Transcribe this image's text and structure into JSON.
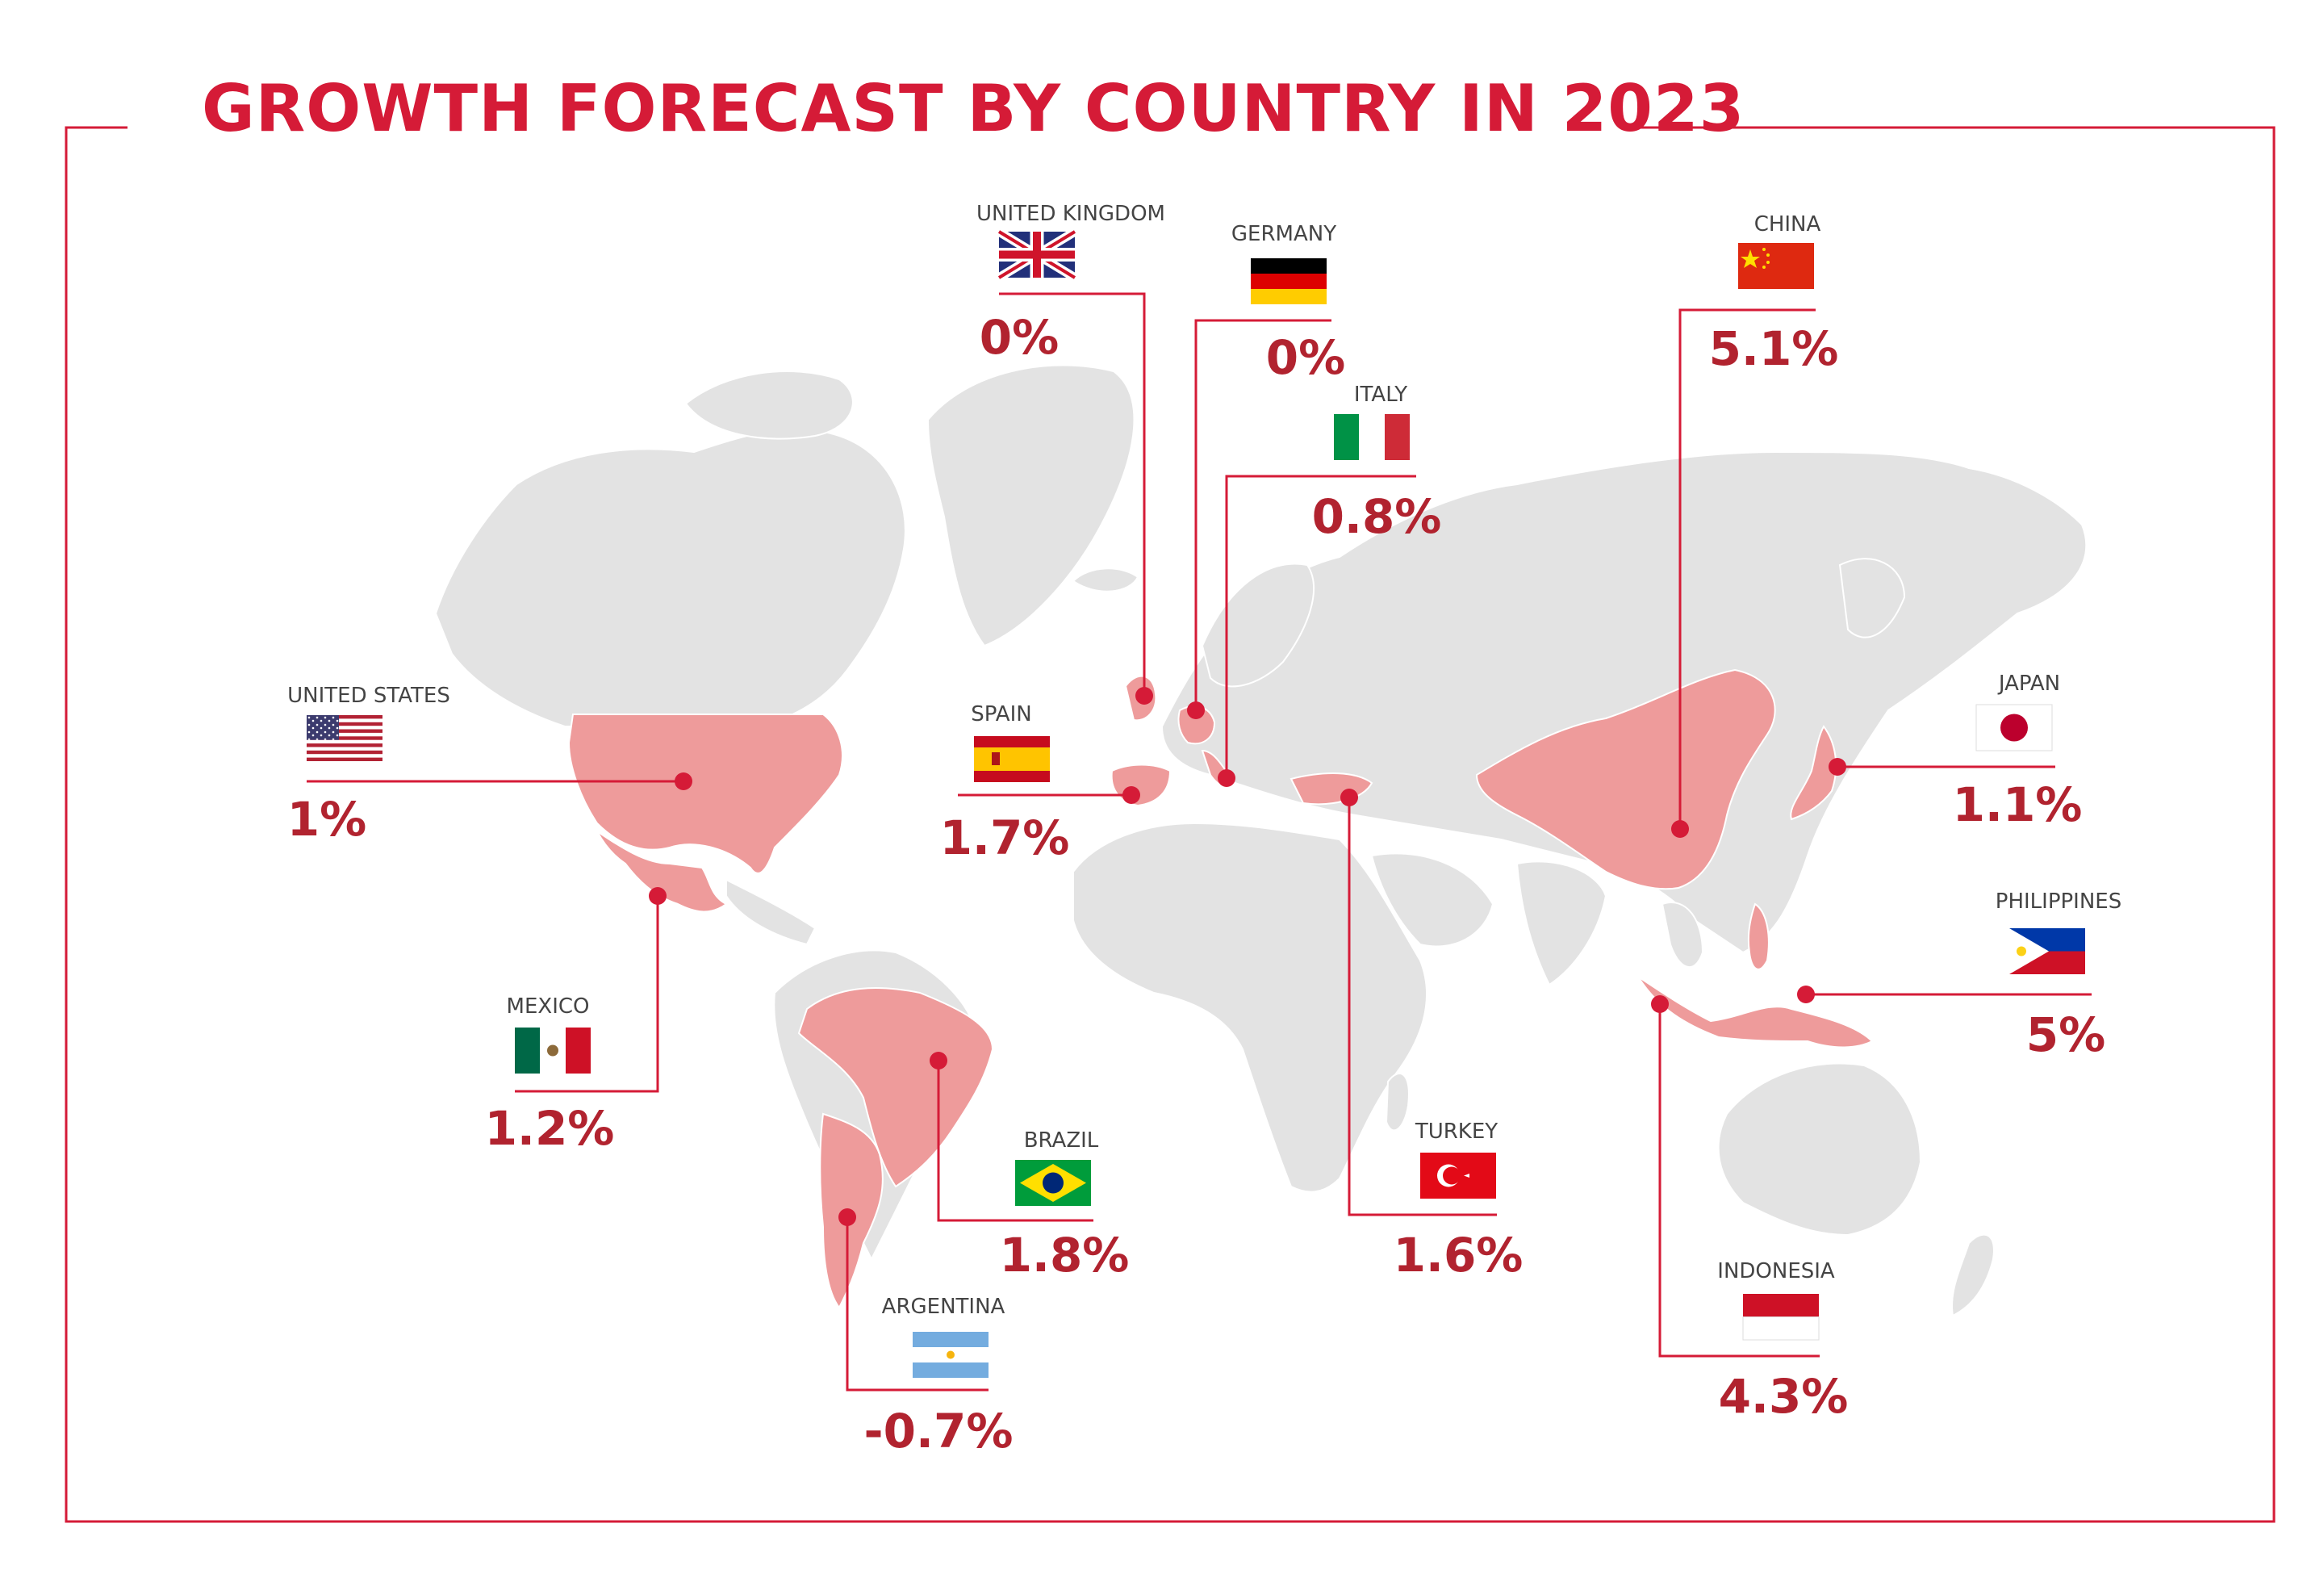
{
  "title": "GROWTH FORECAST BY COUNTRY IN 2023",
  "colors": {
    "accent": "#d51b37",
    "value_text": "#b1232f",
    "land": "#e3e3e3",
    "highlight_land": "#ee9b9b",
    "marker": "#d51b37"
  },
  "countries": [
    {
      "id": "united-kingdom",
      "name": "UNITED KINGDOM",
      "value": "0%",
      "flag": "union-jack-flag"
    },
    {
      "id": "germany",
      "name": "GERMANY",
      "value": "0%",
      "flag": "german-flag"
    },
    {
      "id": "china",
      "name": "CHINA",
      "value": "5.1%",
      "flag": "chinese-flag"
    },
    {
      "id": "italy",
      "name": "ITALY",
      "value": "0.8%",
      "flag": "italian-flag"
    },
    {
      "id": "united-states",
      "name": "UNITED STATES",
      "value": "1%",
      "flag": "us-flag"
    },
    {
      "id": "spain",
      "name": "SPAIN",
      "value": "1.7%",
      "flag": "spanish-flag"
    },
    {
      "id": "japan",
      "name": "JAPAN",
      "value": "1.1%",
      "flag": "japanese-flag"
    },
    {
      "id": "philippines",
      "name": "PHILIPPINES",
      "value": "5%",
      "flag": "philippine-flag"
    },
    {
      "id": "mexico",
      "name": "MEXICO",
      "value": "1.2%",
      "flag": "mexican-flag"
    },
    {
      "id": "brazil",
      "name": "BRAZIL",
      "value": "1.8%",
      "flag": "brazilian-flag"
    },
    {
      "id": "turkey",
      "name": "TURKEY",
      "value": "1.6%",
      "flag": "turkish-flag"
    },
    {
      "id": "indonesia",
      "name": "INDONESIA",
      "value": "4.3%",
      "flag": "indonesian-flag"
    },
    {
      "id": "argentina",
      "name": "ARGENTINA",
      "value": "-0.7%",
      "flag": "argentine-flag"
    }
  ]
}
